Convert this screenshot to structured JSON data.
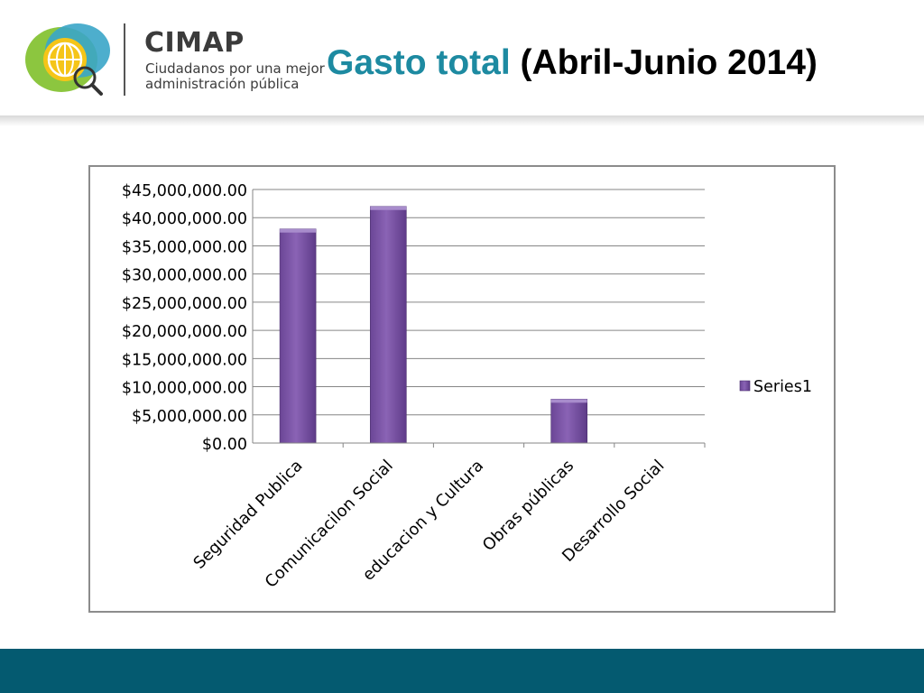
{
  "header": {
    "logo_name": "CIMAP",
    "logo_tagline_line1": "Ciudadanos por una mejor",
    "logo_tagline_line2": "administración pública",
    "title_highlight": "Gasto total",
    "title_rest": " (Abril-Junio 2014)"
  },
  "colors": {
    "title_accent": "#1d8aa1",
    "bar_fill": "#7f5aa6",
    "footer_bar": "#045a70"
  },
  "icons": {
    "logo": "globe-magnifier-icon"
  },
  "chart_data": {
    "type": "bar",
    "title": "",
    "xlabel": "",
    "ylabel": "",
    "categories": [
      "Seguridad Publica",
      "Comunicacilon Social",
      "educacion y Cultura",
      "Obras públicas",
      "Desarrollo Social"
    ],
    "series": [
      {
        "name": "Series1",
        "values": [
          38000000,
          42000000,
          0,
          7800000,
          0
        ]
      }
    ],
    "ylim": [
      0,
      45000000
    ],
    "yticks": [
      0,
      5000000,
      10000000,
      15000000,
      20000000,
      25000000,
      30000000,
      35000000,
      40000000,
      45000000
    ],
    "ytick_labels": [
      "$0.00",
      "$5,000,000.00",
      "$10,000,000.00",
      "$15,000,000.00",
      "$20,000,000.00",
      "$25,000,000.00",
      "$30,000,000.00",
      "$35,000,000.00",
      "$40,000,000.00",
      "$45,000,000.00"
    ],
    "grid": true,
    "legend_position": "right"
  }
}
